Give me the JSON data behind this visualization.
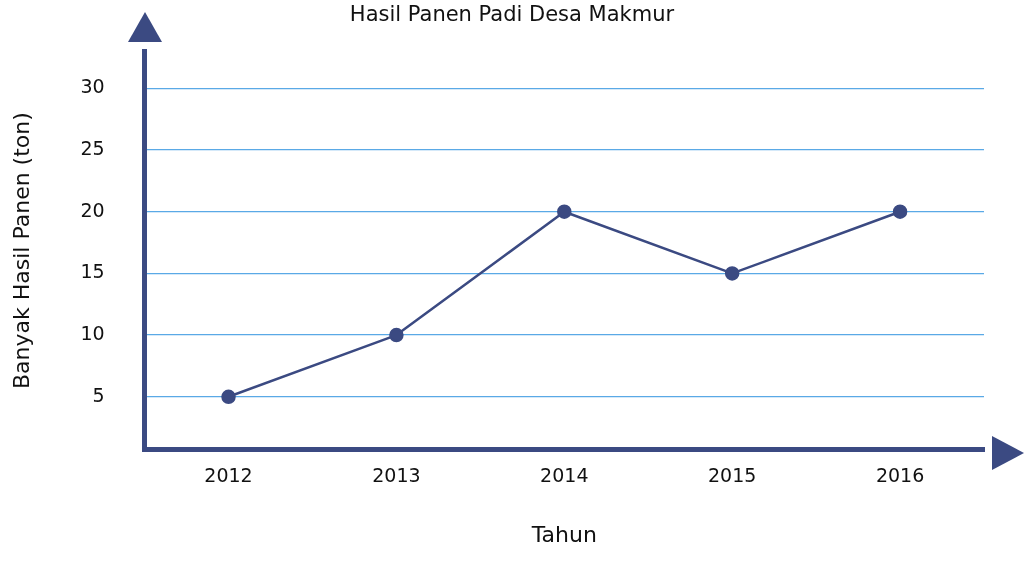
{
  "chart_data": {
    "type": "line",
    "title": "Hasil Panen Padi Desa Makmur",
    "xlabel": "Tahun",
    "ylabel": "Banyak Hasil Panen (ton)",
    "categories": [
      "2012",
      "2013",
      "2014",
      "2015",
      "2016"
    ],
    "series": [
      {
        "color": "#3b4a82",
        "values": [
          5,
          10,
          20,
          15,
          20
        ]
      }
    ],
    "ylim": [
      0.7,
      33
    ],
    "yticks": [
      5,
      10,
      15,
      20,
      25,
      30
    ],
    "grid": "y",
    "legend": false,
    "marker": "circle",
    "line_style": "solid"
  }
}
